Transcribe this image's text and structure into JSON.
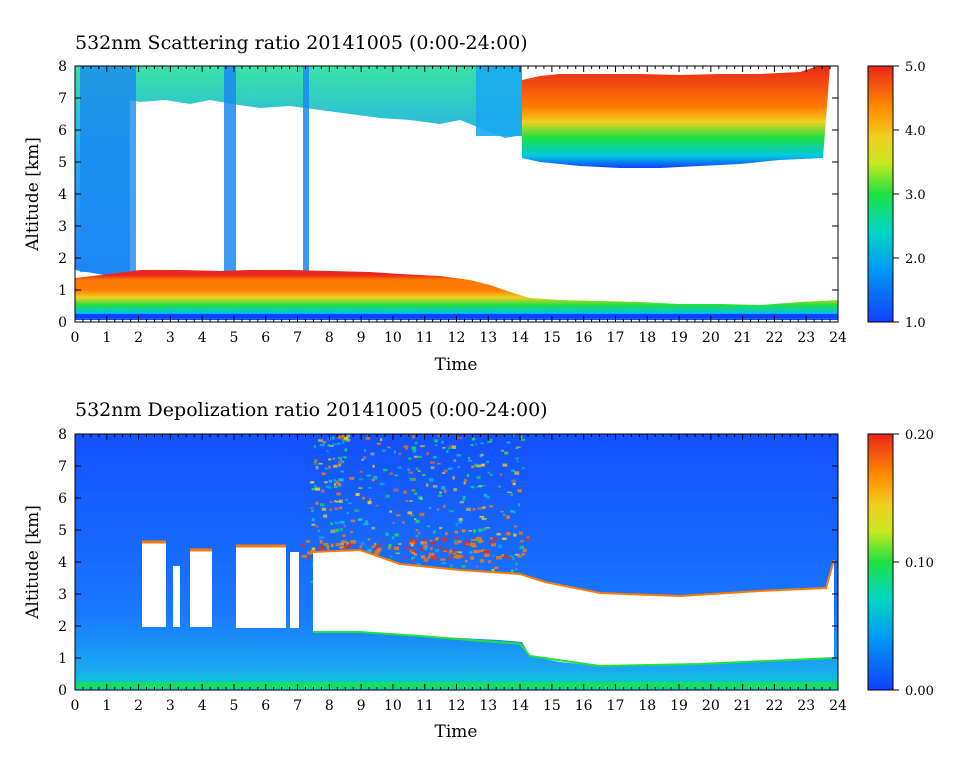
{
  "charts": [
    {
      "title": "532nm Scattering ratio  20141005 (0:00-24:00)",
      "xlabel": "Time",
      "ylabel": "Altitude [km]",
      "colorbar_ticks": [
        "5.0",
        "4.0",
        "3.0",
        "2.0",
        "1.0"
      ]
    },
    {
      "title": "532nm Depolization ratio  20141005 (0:00-24:00)",
      "xlabel": "Time",
      "ylabel": "Altitude [km]",
      "colorbar_ticks": [
        "0.20",
        "0.10",
        "0.00"
      ]
    }
  ],
  "x_ticks": [
    "0",
    "1",
    "2",
    "3",
    "4",
    "5",
    "6",
    "7",
    "8",
    "9",
    "10",
    "11",
    "12",
    "13",
    "14",
    "15",
    "16",
    "17",
    "18",
    "19",
    "20",
    "21",
    "22",
    "23",
    "24"
  ],
  "y_ticks": [
    "0",
    "1",
    "2",
    "3",
    "4",
    "5",
    "6",
    "7",
    "8"
  ],
  "chart_data": [
    {
      "type": "heatmap",
      "title": "532nm Scattering ratio  20141005 (0:00-24:00)",
      "xlabel": "Time",
      "ylabel": "Altitude [km]",
      "xlim": [
        0,
        24
      ],
      "ylim": [
        0,
        8
      ],
      "clim": [
        1.0,
        5.0
      ],
      "colorbar_ticks": [
        1.0,
        2.0,
        3.0,
        4.0,
        5.0
      ],
      "colormap": [
        "#1040ff",
        "#00c8e0",
        "#20e040",
        "#f0e020",
        "#ff7a00",
        "#e8281a"
      ],
      "features": [
        {
          "name": "boundary layer",
          "time": [
            0,
            24
          ],
          "altitude_km": [
            0.2,
            1.7
          ],
          "value_approx": 4.5
        },
        {
          "name": "high cloud",
          "time": [
            14,
            23.8
          ],
          "altitude_km": [
            4.8,
            8
          ],
          "value_approx": 5.0
        },
        {
          "name": "upper cloud fragments",
          "time": [
            0,
            14
          ],
          "altitude_km": [
            5.5,
            8
          ],
          "value_approx": 1.8
        }
      ]
    },
    {
      "type": "heatmap",
      "title": "532nm Depolization ratio  20141005 (0:00-24:00)",
      "xlabel": "Time",
      "ylabel": "Altitude [km]",
      "xlim": [
        0,
        24
      ],
      "ylim": [
        0,
        8
      ],
      "clim": [
        0.0,
        0.2
      ],
      "colorbar_ticks": [
        0.0,
        0.1,
        0.2
      ],
      "colormap": [
        "#1040ff",
        "#00c8e0",
        "#20e040",
        "#f0e020",
        "#ff7a00",
        "#e8281a"
      ],
      "features": [
        {
          "name": "low depolarization background",
          "time": [
            0,
            24
          ],
          "altitude_km": [
            0,
            8
          ],
          "value_approx": 0.02
        },
        {
          "name": "noisy upper layer",
          "time": [
            7,
            14
          ],
          "altitude_km": [
            4,
            8
          ],
          "value_approx": 0.12
        }
      ]
    }
  ]
}
